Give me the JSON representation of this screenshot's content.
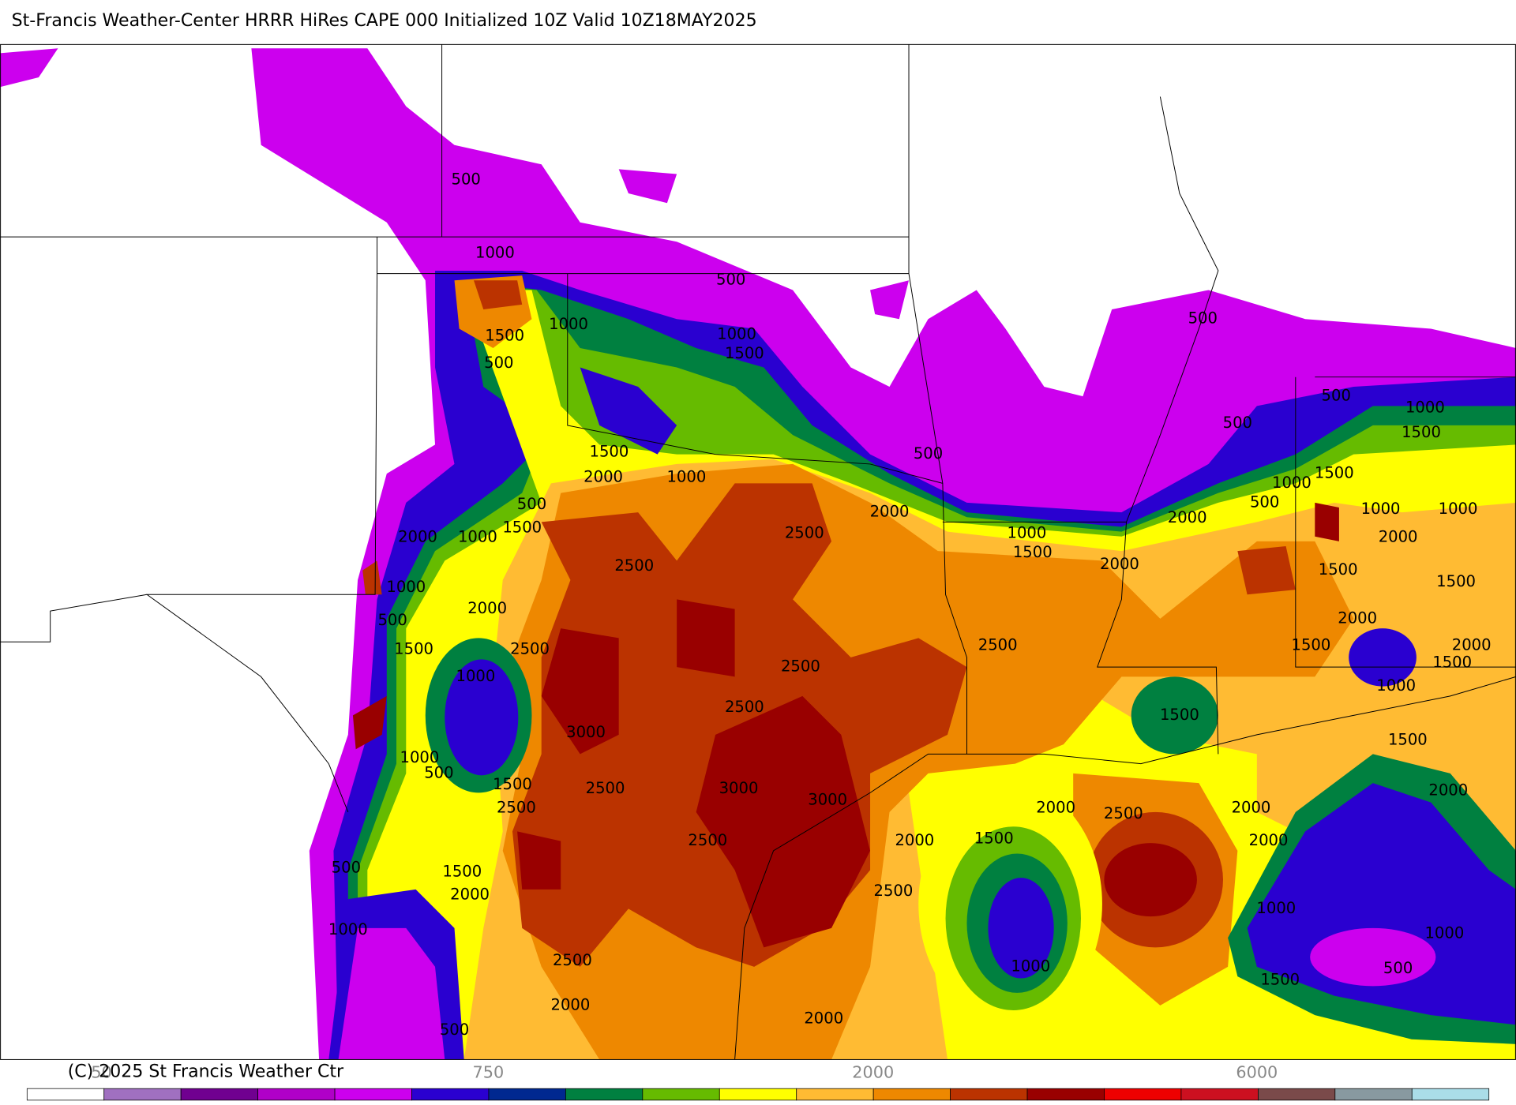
{
  "header": {
    "title": "St-Francis Weather-Center HRRR HiRes CAPE  000 Initialized  10Z Valid 10Z18MAY2025"
  },
  "contour_labels": [
    "500",
    "1000",
    "500",
    "1000",
    "1500",
    "500",
    "1000",
    "1500",
    "1500",
    "2000",
    "1000",
    "500",
    "1500",
    "2000",
    "1000",
    "1000",
    "2000",
    "500",
    "1500",
    "2500",
    "2500",
    "2500",
    "2000",
    "500",
    "500",
    "500",
    "500",
    "1000",
    "1500",
    "1500",
    "1000",
    "500",
    "1000",
    "1000",
    "2000",
    "2000",
    "1000",
    "1500",
    "2000",
    "1500",
    "1500",
    "2000",
    "1500",
    "2000",
    "1500",
    "2500",
    "2500",
    "1000",
    "2500",
    "1000",
    "1500",
    "3000",
    "1000",
    "500",
    "1500",
    "2500",
    "2500",
    "3000",
    "3000",
    "1500",
    "2000",
    "2500",
    "2000",
    "2000",
    "1500",
    "2000",
    "2500",
    "2000",
    "500",
    "1500",
    "2000",
    "2500",
    "1000",
    "1000",
    "1000",
    "2500",
    "1000",
    "500",
    "1500",
    "2000",
    "2000",
    "500"
  ],
  "colorbar": {
    "colors": [
      "#ffffff",
      "#a070c0",
      "#700090",
      "#b000c8",
      "#cc00ee",
      "#2a00d0",
      "#002890",
      "#008040",
      "#66bb00",
      "#ffff00",
      "#ffbb33",
      "#ee8800",
      "#bb3300",
      "#990000",
      "#ee0000",
      "#cc1020",
      "#7a4a4a",
      "#8899a0",
      "#aadde8"
    ],
    "labels": [
      "50",
      "750",
      "2000",
      "6000"
    ]
  },
  "footer": {
    "copyright": "(C) 2025 St Francis Weather Ctr"
  }
}
